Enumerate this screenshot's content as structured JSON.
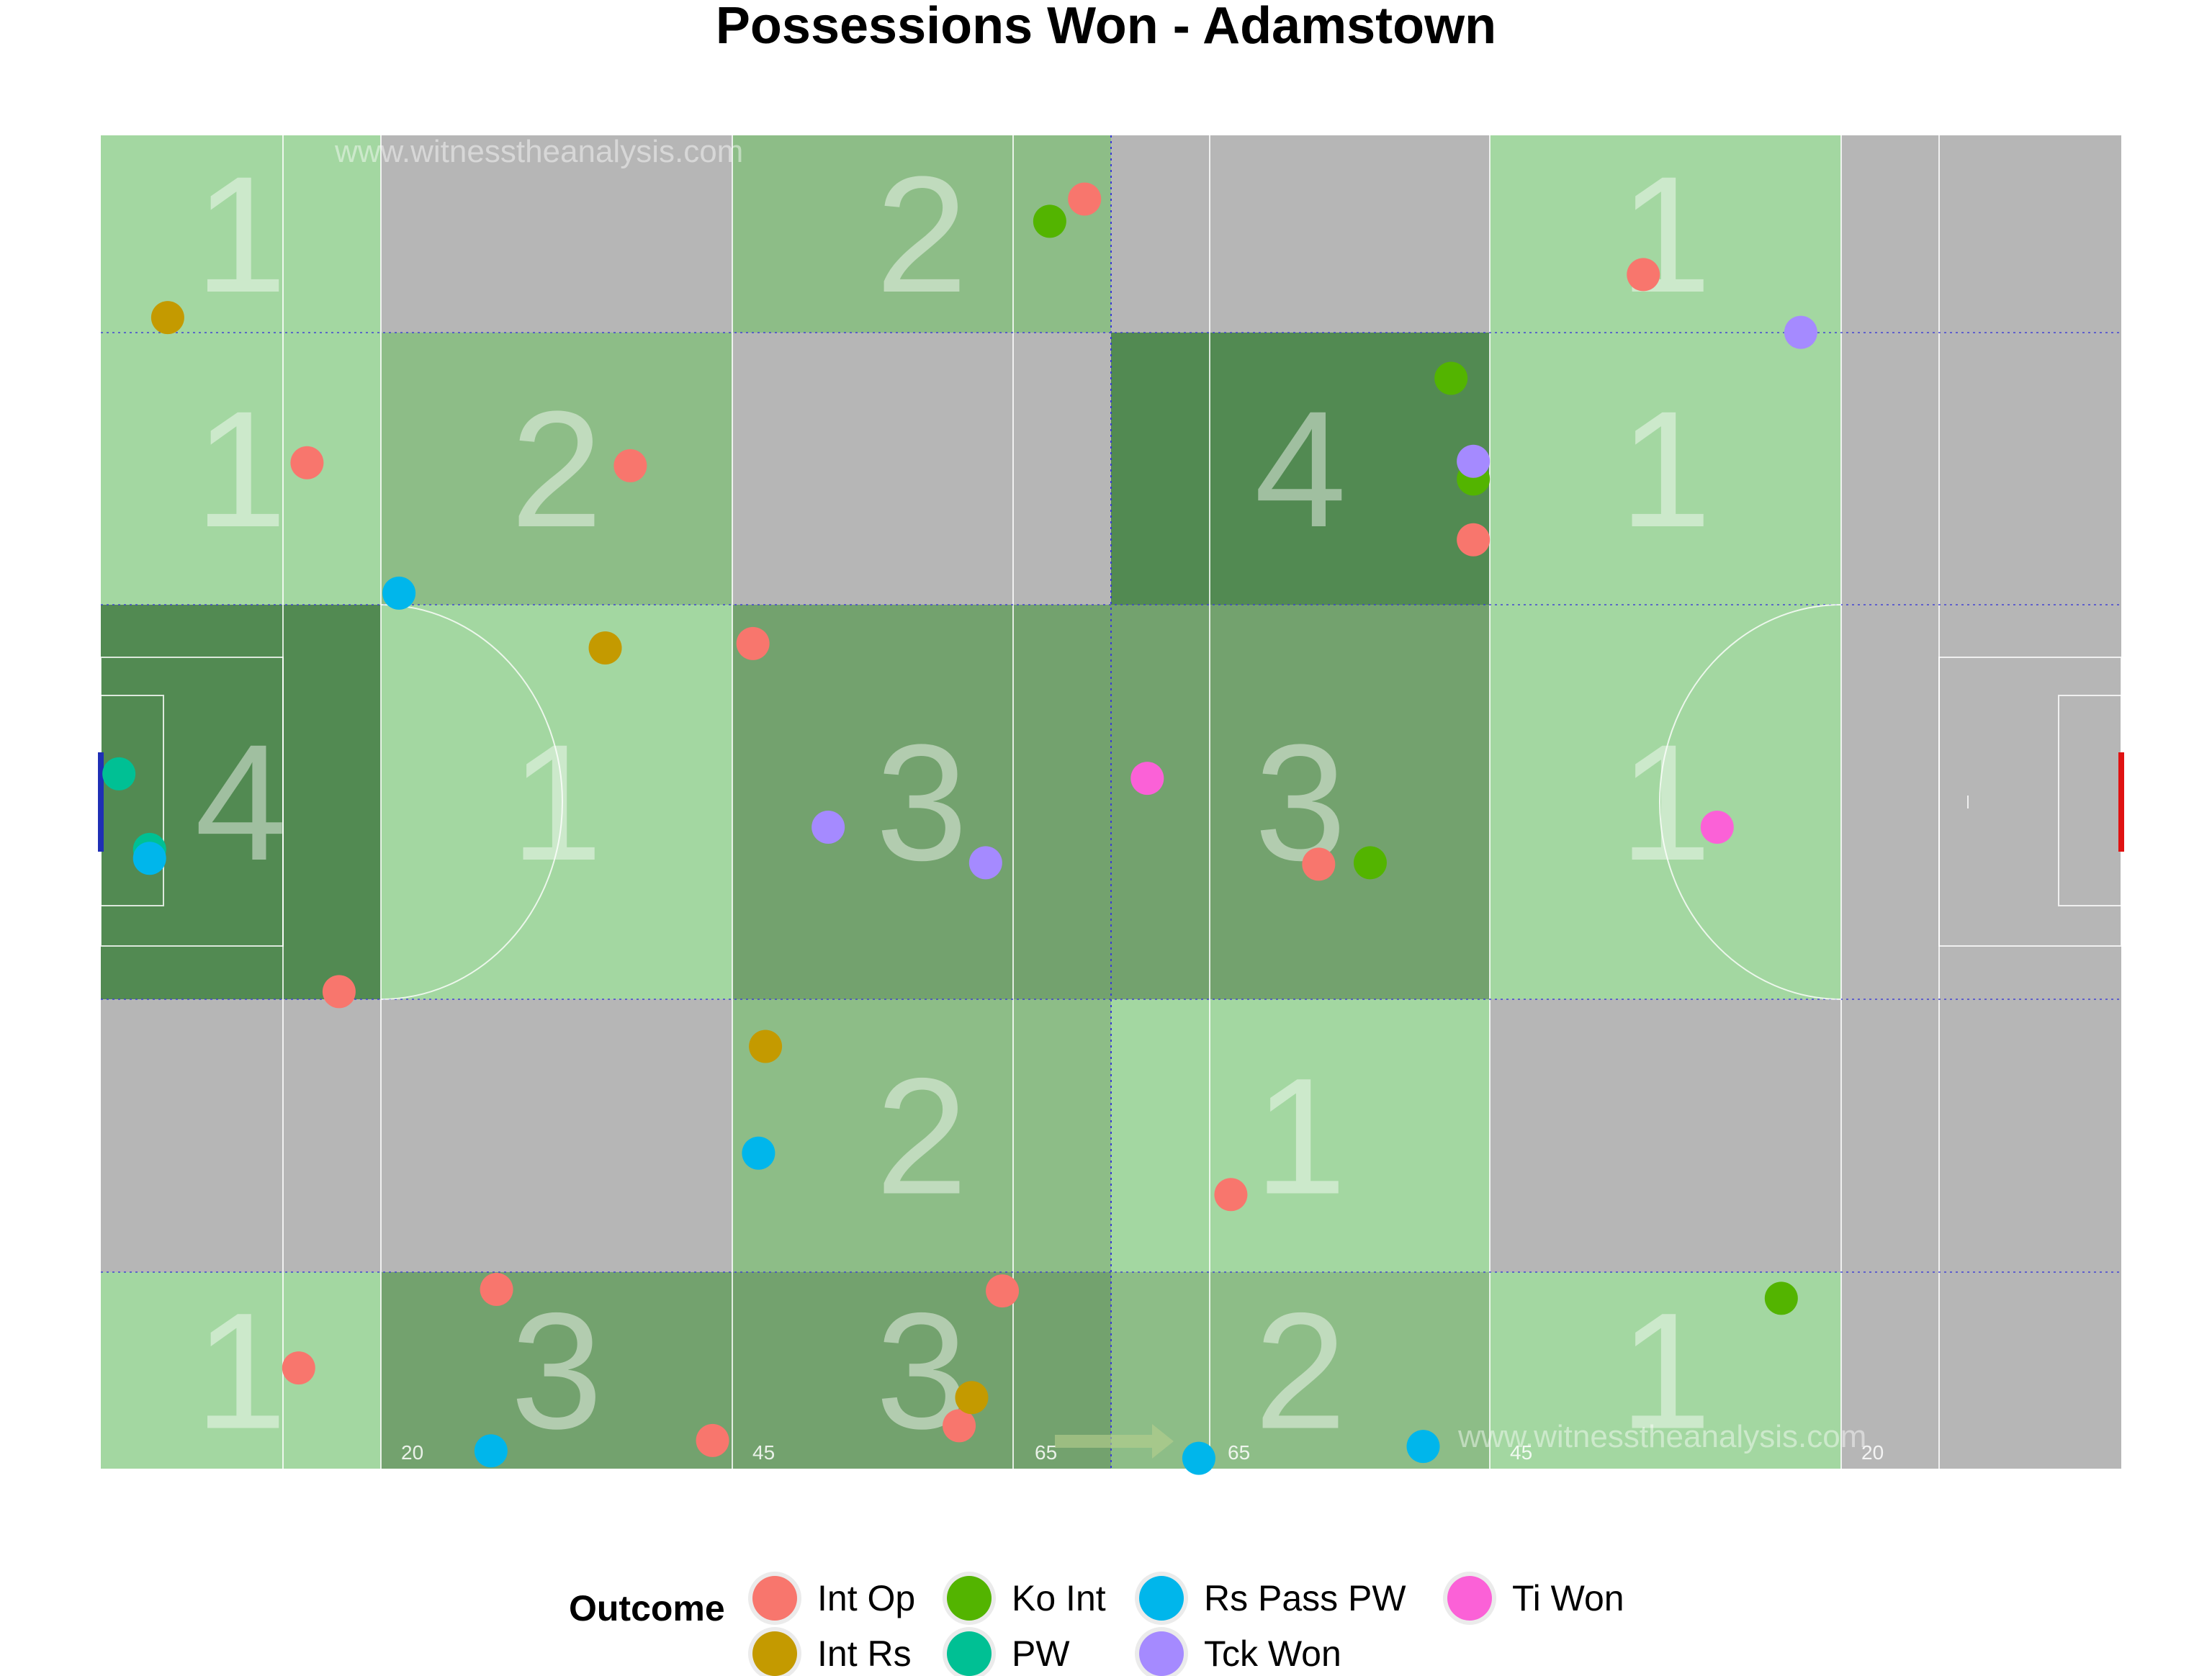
{
  "chart_data": {
    "type": "scatter",
    "title": "Possessions Won - Adamstown",
    "x_range": [
      0,
      145
    ],
    "y_range": [
      0,
      90
    ],
    "watermark": "www.witnesstheanalysis.com",
    "distance_labels": [
      "20",
      "45",
      "65",
      "65",
      "45",
      "20"
    ],
    "zone_counts": [
      {
        "zone": "col1-row1",
        "count": 1,
        "fill": "#a3d7a1"
      },
      {
        "zone": "col2-row1",
        "count": 0,
        "fill": "#b6b6b6"
      },
      {
        "zone": "col3-row1",
        "count": 2,
        "fill": "#8dbd87"
      },
      {
        "zone": "col4-row1",
        "count": 0,
        "fill": "#b6b6b6"
      },
      {
        "zone": "col5-row1",
        "count": 1,
        "fill": "#a3d7a1"
      },
      {
        "zone": "col6-row1",
        "count": 0,
        "fill": "#b6b6b6"
      },
      {
        "zone": "col1-row2",
        "count": 1,
        "fill": "#a3d7a1"
      },
      {
        "zone": "col2-row2",
        "count": 2,
        "fill": "#8dbd87"
      },
      {
        "zone": "col3-row2",
        "count": 0,
        "fill": "#b6b6b6"
      },
      {
        "zone": "col4-row2",
        "count": 4,
        "fill": "#528a52"
      },
      {
        "zone": "col5-row2",
        "count": 1,
        "fill": "#a3d7a1"
      },
      {
        "zone": "col6-row2",
        "count": 0,
        "fill": "#b6b6b6"
      },
      {
        "zone": "col1-row3",
        "count": 4,
        "fill": "#528a52"
      },
      {
        "zone": "col2-row3",
        "count": 1,
        "fill": "#a3d7a1"
      },
      {
        "zone": "col3-row3",
        "count": 3,
        "fill": "#73a26e"
      },
      {
        "zone": "col4-row3",
        "count": 3,
        "fill": "#73a26e"
      },
      {
        "zone": "col5-row3",
        "count": 1,
        "fill": "#a3d7a1"
      },
      {
        "zone": "col6-row3",
        "count": 0,
        "fill": "#b6b6b6"
      },
      {
        "zone": "col1-row4",
        "count": 0,
        "fill": "#b6b6b6"
      },
      {
        "zone": "col2-row4",
        "count": 0,
        "fill": "#b6b6b6"
      },
      {
        "zone": "col3-row4",
        "count": 2,
        "fill": "#8dbd87"
      },
      {
        "zone": "col4-row4",
        "count": 1,
        "fill": "#a3d7a1"
      },
      {
        "zone": "col5-row4",
        "count": 0,
        "fill": "#b6b6b6"
      },
      {
        "zone": "col6-row4",
        "count": 0,
        "fill": "#b6b6b6"
      },
      {
        "zone": "col1-row5",
        "count": 1,
        "fill": "#a3d7a1"
      },
      {
        "zone": "col2-row5",
        "count": 3,
        "fill": "#73a26e"
      },
      {
        "zone": "col3-row5",
        "count": 3,
        "fill": "#73a26e"
      },
      {
        "zone": "col4-row5",
        "count": 2,
        "fill": "#8dbd87"
      },
      {
        "zone": "col5-row5",
        "count": 1,
        "fill": "#a3d7a1"
      },
      {
        "zone": "col6-row5",
        "count": 0,
        "fill": "#b6b6b6"
      }
    ],
    "legend": {
      "title": "Outcome",
      "position": "bottom",
      "entries": [
        {
          "name": "Int Op",
          "color": "#f8766d"
        },
        {
          "name": "Int Rs",
          "color": "#c49a00"
        },
        {
          "name": "Ko Int",
          "color": "#53b400"
        },
        {
          "name": "PW",
          "color": "#00c094"
        },
        {
          "name": "Rs Pass PW",
          "color": "#00b6eb"
        },
        {
          "name": "Tck Won",
          "color": "#a58aff"
        },
        {
          "name": "Ti Won",
          "color": "#fb61d7"
        }
      ]
    },
    "series": [
      {
        "name": "Int Op",
        "color": "#f8766d",
        "points": [
          [
            70.6,
            85.7
          ],
          [
            110.7,
            80.6
          ],
          [
            14.8,
            67.9
          ],
          [
            38.0,
            67.7
          ],
          [
            98.5,
            62.7
          ],
          [
            46.8,
            55.7
          ],
          [
            87.4,
            40.8
          ],
          [
            17.1,
            32.2
          ],
          [
            81.1,
            18.5
          ],
          [
            28.4,
            12.1
          ],
          [
            64.7,
            12.0
          ],
          [
            14.2,
            6.8
          ],
          [
            61.6,
            2.9
          ],
          [
            43.9,
            1.9
          ]
        ]
      },
      {
        "name": "Int Rs",
        "color": "#c49a00",
        "points": [
          [
            4.8,
            77.7
          ],
          [
            36.2,
            55.4
          ],
          [
            47.7,
            28.5
          ],
          [
            62.5,
            4.8
          ]
        ]
      },
      {
        "name": "Ko Int",
        "color": "#53b400",
        "points": [
          [
            68.1,
            84.2
          ],
          [
            96.9,
            73.6
          ],
          [
            98.5,
            66.8
          ],
          [
            91.1,
            40.9
          ],
          [
            120.6,
            11.5
          ]
        ]
      },
      {
        "name": "PW",
        "color": "#00c094",
        "points": [
          [
            1.3,
            46.9
          ],
          [
            3.5,
            41.8
          ]
        ]
      },
      {
        "name": "Rs Pass PW",
        "color": "#00b6eb",
        "points": [
          [
            21.4,
            59.1
          ],
          [
            3.5,
            41.2
          ],
          [
            47.2,
            21.3
          ],
          [
            28.0,
            1.2
          ],
          [
            94.9,
            1.5
          ],
          [
            78.8,
            0.7
          ]
        ]
      },
      {
        "name": "Tck Won",
        "color": "#a58aff",
        "points": [
          [
            122.0,
            76.7
          ],
          [
            98.5,
            68.0
          ],
          [
            52.2,
            43.3
          ],
          [
            63.5,
            40.9
          ]
        ]
      },
      {
        "name": "Ti Won",
        "color": "#fb61d7",
        "points": [
          [
            75.1,
            46.6
          ],
          [
            116.0,
            43.3
          ]
        ]
      }
    ]
  }
}
